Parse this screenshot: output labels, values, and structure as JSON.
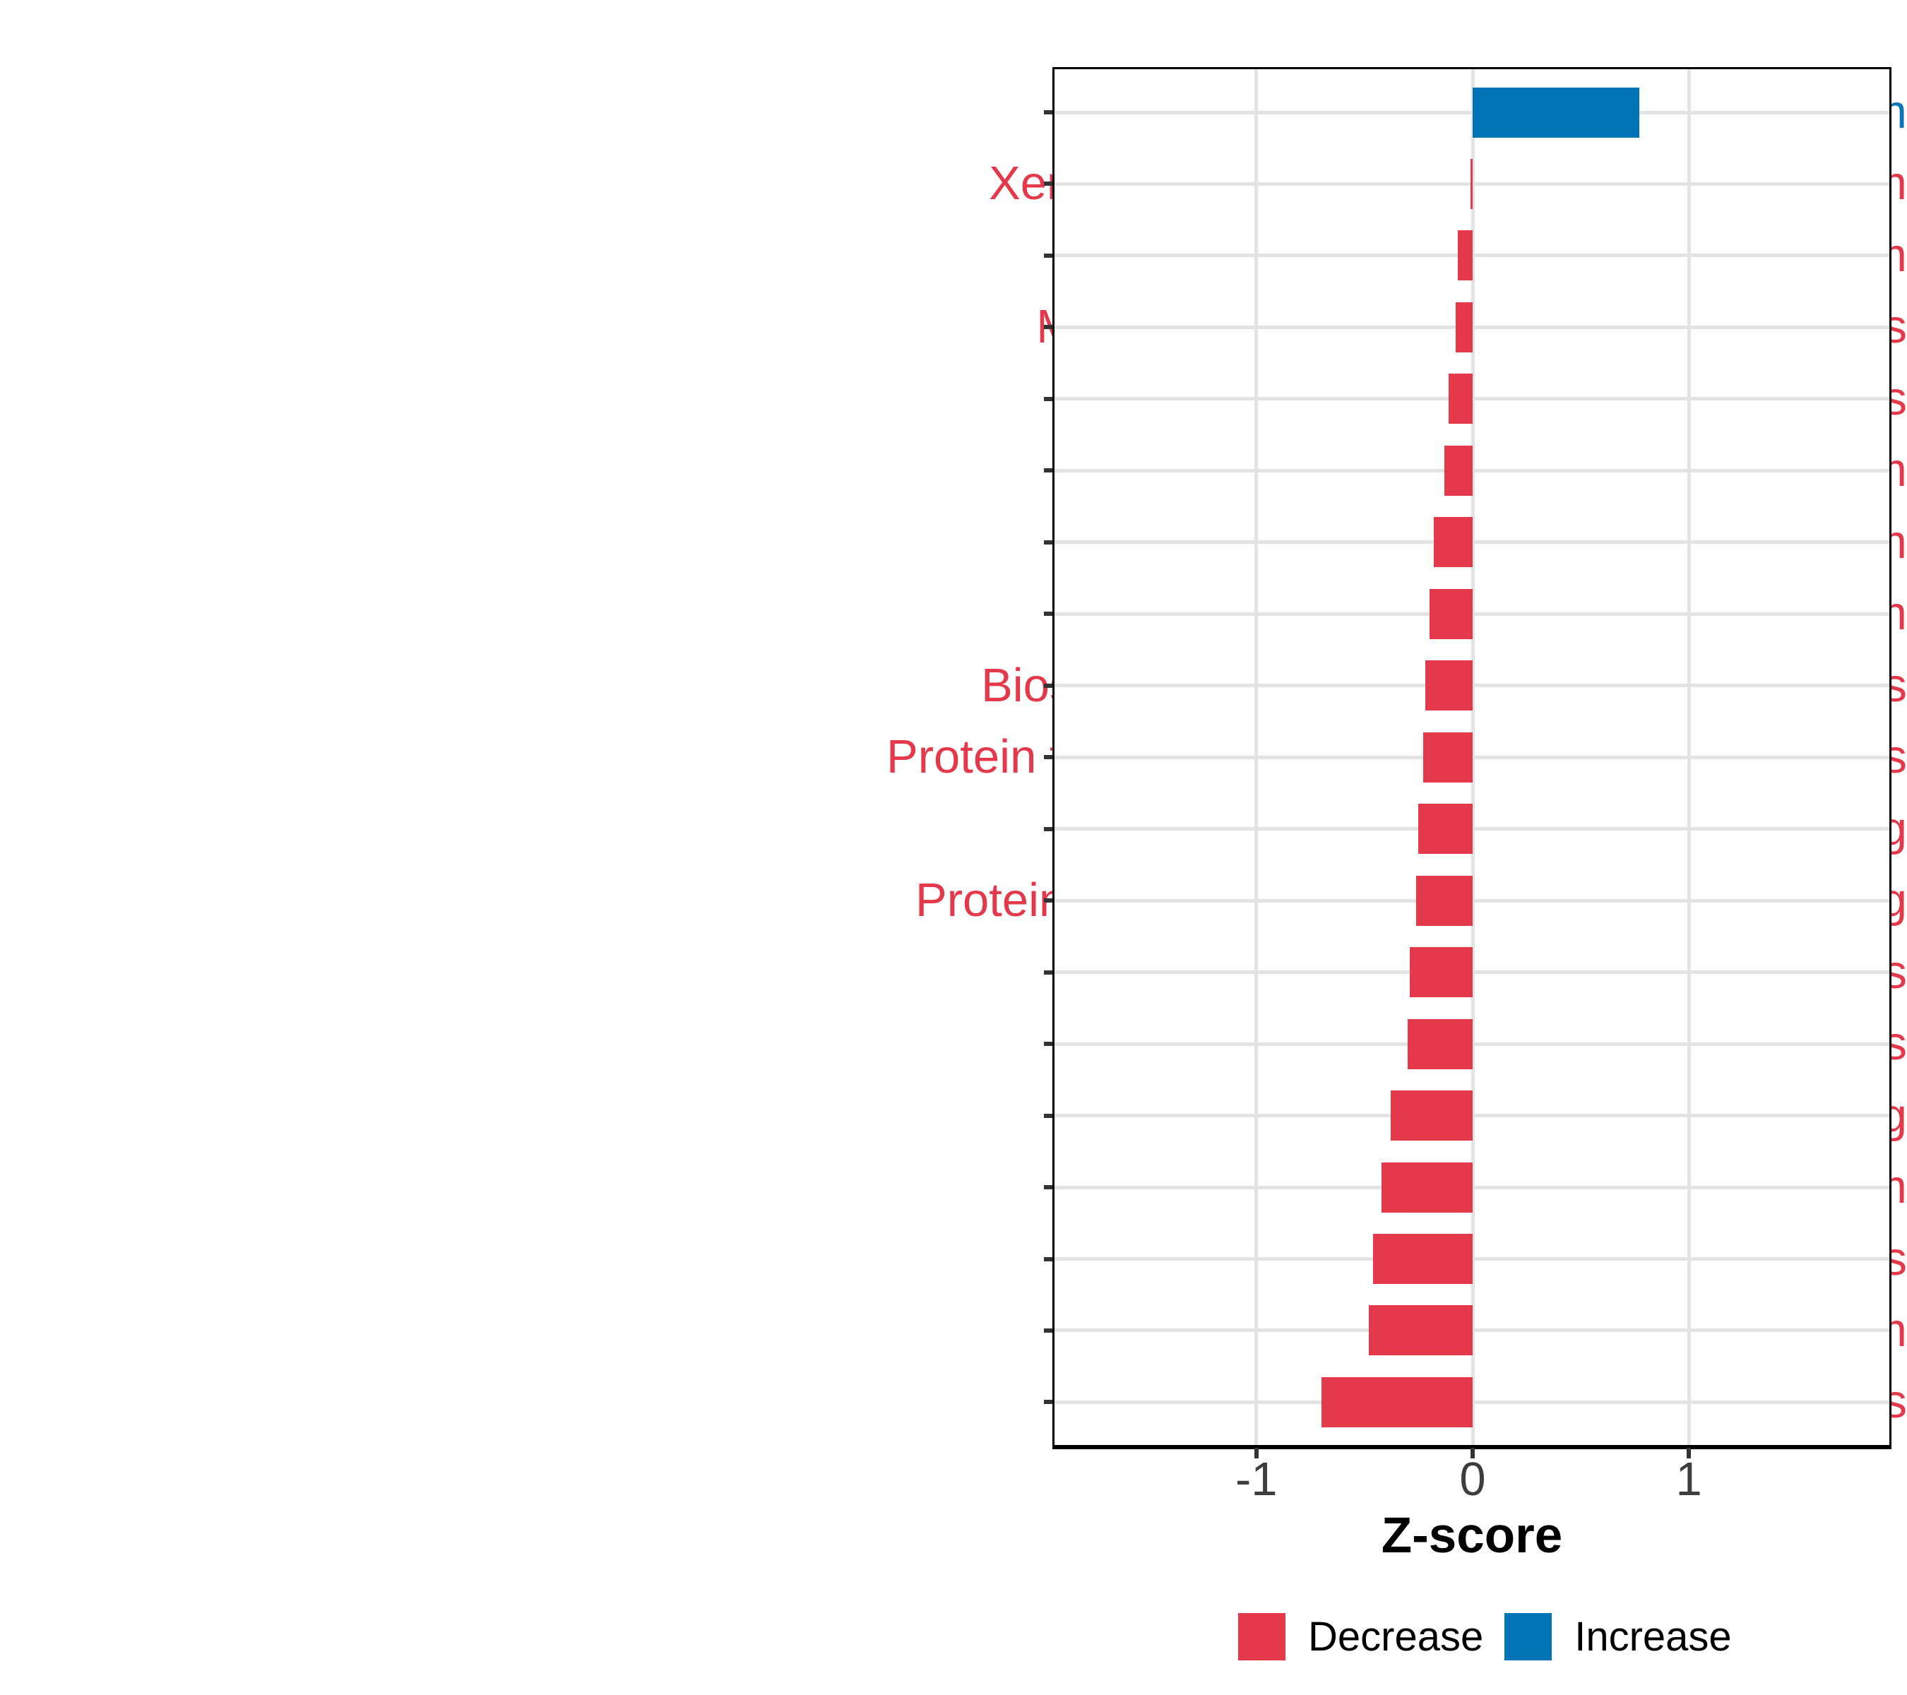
{
  "chart_data": {
    "type": "bar",
    "orientation": "horizontal",
    "title": "",
    "xlabel": "Z-score",
    "ylabel": "",
    "categories": [
      "Energy metabolism",
      "Xenobiotics biodegradation and metabolism",
      "Nucleotide metabolism",
      "Metabolism of terpenoids and polyketides",
      "Metabolism of cofactors and vitamins",
      "Lipid metabolism",
      "Protein families: metabolism",
      "Amino acid metabolism",
      "Biosynthesis of other secondary metabolites",
      "Protein families: signaling and cellular processes",
      "Genetic Information Processing",
      "Protein families: genetic information processing",
      "Cellular Processes",
      "Human Diseases",
      "Environmental Information Processing",
      "Glycan biosynthesis and metabolism",
      "Organismal Systems",
      "Carbohydrate metabolism",
      "Metabolism of other amino acids"
    ],
    "values": [
      0.77,
      -0.01,
      -0.07,
      -0.08,
      -0.11,
      -0.13,
      -0.18,
      -0.2,
      -0.22,
      -0.23,
      -0.25,
      -0.26,
      -0.29,
      -0.3,
      -0.38,
      -0.42,
      -0.46,
      -0.48,
      -0.7
    ],
    "directions": [
      "Increase",
      "Decrease",
      "Decrease",
      "Decrease",
      "Decrease",
      "Decrease",
      "Decrease",
      "Decrease",
      "Decrease",
      "Decrease",
      "Decrease",
      "Decrease",
      "Decrease",
      "Decrease",
      "Decrease",
      "Decrease",
      "Decrease",
      "Decrease",
      "Decrease"
    ],
    "x_ticks": [
      -1,
      0,
      1
    ],
    "x_tick_labels": [
      "-1",
      "0",
      "1"
    ],
    "xlim": [
      -1.93,
      1.93
    ],
    "grid": "major",
    "legend": {
      "position": "bottom",
      "entries": [
        {
          "label": "Decrease",
          "color": "#E4394B"
        },
        {
          "label": "Increase",
          "color": "#0074B5"
        }
      ]
    },
    "colors": {
      "decrease_bar": "#E4394B",
      "increase_bar": "#0074B5",
      "decrease_label_text": "#E4394B",
      "increase_label_text": "#0E76B4",
      "axis_text": "#3E3E3E",
      "gridline": "#E3E3E3",
      "panel_border": "#000000"
    }
  }
}
